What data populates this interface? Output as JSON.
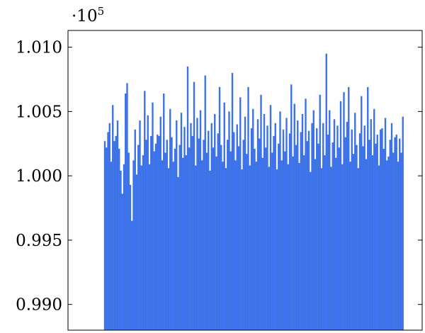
{
  "chart_data": {
    "type": "bar",
    "title": "",
    "xlabel": "",
    "ylabel": "",
    "y_scale_base": "·10",
    "y_scale_exponent": "5",
    "ylim": [
      0.988,
      1.0113
    ],
    "yticks": [
      0.99,
      0.995,
      1.0,
      1.005,
      1.01
    ],
    "ytick_labels": [
      "0.990",
      "0.995",
      "1.000",
      "1.005",
      "1.010"
    ],
    "xlim": [
      0,
      500
    ],
    "bar_x_range": [
      50,
      475
    ],
    "bar_color": "#3b71e8",
    "grid": false,
    "legend": "none",
    "series": [
      {
        "values": [
          1.0027,
          1.0022,
          1.0034,
          1.0041,
          1.0011,
          1.0055,
          1.0027,
          1.0031,
          1.0043,
          1.0021,
          1.0004,
          0.9986,
          1.0009,
          1.0064,
          1.0072,
          1.0018,
          0.9993,
          0.9965,
          1.0012,
          1.0036,
          1.0001,
          1.0024,
          1.0043,
          1.0008,
          1.0016,
          1.0066,
          1.0028,
          1.0047,
          1.0009,
          1.0031,
          1.0057,
          1.0019,
          1.0025,
          1.0032,
          1.0031,
          1.0046,
          1.0012,
          1.0064,
          1.0018,
          1.0028,
          1.0006,
          1.0052,
          1.003,
          1.0011,
          1.0021,
          1.0043,
          0.9999,
          1.0024,
          1.0049,
          1.0014,
          1.0038,
          1.0016,
          1.0085,
          1.0022,
          1.0041,
          1.0031,
          1.0073,
          1.0008,
          1.0045,
          1.0029,
          1.0051,
          1.0012,
          1.0028,
          1.0078,
          1.0018,
          1.0035,
          1.0004,
          1.0041,
          1.0022,
          1.0048,
          1.0015,
          1.0033,
          1.0069,
          1.0024,
          1.0011,
          1.0057,
          1.0006,
          1.0028,
          1.005,
          1.0019,
          1.008,
          1.0034,
          1.0012,
          1.004,
          1.0023,
          1.0061,
          1.0005,
          1.0028,
          1.0046,
          1.0017,
          1.0069,
          1.0008,
          1.0037,
          1.0052,
          1.0021,
          1.0011,
          1.0044,
          1.0029,
          1.0063,
          1.0014,
          1.0048,
          1.0022,
          1.0039,
          1.0007,
          1.0055,
          1.0018,
          1.0031,
          1.0041,
          1.0005,
          1.0025,
          1.005,
          1.0012,
          1.0036,
          1.0019,
          1.0045,
          1.0009,
          1.0033,
          1.0071,
          1.0015,
          1.0056,
          1.0024,
          1.0043,
          1.001,
          1.0034,
          1.0048,
          1.0016,
          1.006,
          1.0027,
          1.0035,
          1.0003,
          1.0041,
          1.0051,
          1.0013,
          1.0037,
          1.0025,
          1.0063,
          1.0006,
          1.0041,
          1.0016,
          1.0095,
          1.0032,
          1.0051,
          1.0007,
          1.0026,
          1.0044,
          1.0014,
          1.0039,
          1.0022,
          1.0058,
          1.0009,
          1.0065,
          1.003,
          1.0042,
          1.0069,
          1.0011,
          1.0036,
          1.0017,
          1.0049,
          1.0024,
          1.0006,
          1.0033,
          1.0062,
          1.0023,
          1.0039,
          1.0013,
          1.0069,
          1.0028,
          1.0044,
          1.0016,
          1.0052,
          1.0025,
          1.0032,
          1.0008,
          1.0036,
          1.0037,
          1.0021,
          1.0045,
          1.0012,
          1.0015,
          1.0028,
          1.0041,
          1.0018,
          1.003,
          1.0032,
          1.0011,
          1.0029,
          1.0018,
          1.0046
        ],
        "x_start": 52,
        "x_step": 2.25
      }
    ]
  }
}
